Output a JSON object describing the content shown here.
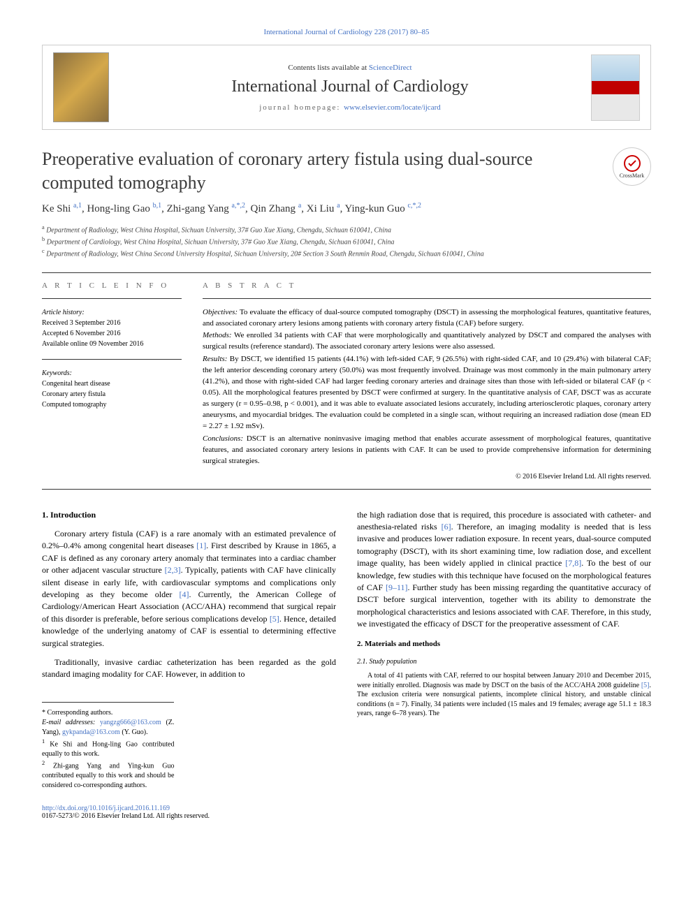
{
  "top_link": "International Journal of Cardiology 228 (2017) 80–85",
  "header": {
    "contents_prefix": "Contents lists available at ",
    "contents_link": "ScienceDirect",
    "journal": "International Journal of Cardiology",
    "homepage_prefix": "journal homepage: ",
    "homepage_link": "www.elsevier.com/locate/ijcard"
  },
  "article": {
    "title": "Preoperative evaluation of coronary artery fistula using dual-source computed tomography",
    "crossmark": "CrossMark"
  },
  "authors_html": "Ke Shi <sup>a,1</sup>, Hong-ling Gao <sup>b,1</sup>, Zhi-gang Yang <sup>a,*,2</sup>, Qin Zhang <sup>a</sup>, Xi Liu <sup>a</sup>, Ying-kun Guo <sup>c,*,2</sup>",
  "affiliations": [
    {
      "sup": "a",
      "text": "Department of Radiology, West China Hospital, Sichuan University, 37# Guo Xue Xiang, Chengdu, Sichuan 610041, China"
    },
    {
      "sup": "b",
      "text": "Department of Cardiology, West China Hospital, Sichuan University, 37# Guo Xue Xiang, Chengdu, Sichuan 610041, China"
    },
    {
      "sup": "c",
      "text": "Department of Radiology, West China Second University Hospital, Sichuan University, 20# Section 3 South Renmin Road, Chengdu, Sichuan 610041, China"
    }
  ],
  "info": {
    "heading": "a r t i c l e   i n f o",
    "history_label": "Article history:",
    "history": [
      "Received 3 September 2016",
      "Accepted 6 November 2016",
      "Available online 09 November 2016"
    ],
    "keywords_label": "Keywords:",
    "keywords": [
      "Congenital heart disease",
      "Coronary artery fistula",
      "Computed tomography"
    ]
  },
  "abstract": {
    "heading": "a b s t r a c t",
    "sections": [
      {
        "label": "Objectives:",
        "text": "To evaluate the efficacy of dual-source computed tomography (DSCT) in assessing the morphological features, quantitative features, and associated coronary artery lesions among patients with coronary artery fistula (CAF) before surgery."
      },
      {
        "label": "Methods:",
        "text": "We enrolled 34 patients with CAF that were morphologically and quantitatively analyzed by DSCT and compared the analyses with surgical results (reference standard). The associated coronary artery lesions were also assessed."
      },
      {
        "label": "Results:",
        "text": "By DSCT, we identified 15 patients (44.1%) with left-sided CAF, 9 (26.5%) with right-sided CAF, and 10 (29.4%) with bilateral CAF; the left anterior descending coronary artery (50.0%) was most frequently involved. Drainage was most commonly in the main pulmonary artery (41.2%), and those with right-sided CAF had larger feeding coronary arteries and drainage sites than those with left-sided or bilateral CAF (p < 0.05). All the morphological features presented by DSCT were confirmed at surgery. In the quantitative analysis of CAF, DSCT was as accurate as surgery (r = 0.95–0.98, p < 0.001), and it was able to evaluate associated lesions accurately, including arteriosclerotic plaques, coronary artery aneurysms, and myocardial bridges. The evaluation could be completed in a single scan, without requiring an increased radiation dose (mean ED = 2.27 ± 1.92 mSv)."
      },
      {
        "label": "Conclusions:",
        "text": "DSCT is an alternative noninvasive imaging method that enables accurate assessment of morphological features, quantitative features, and associated coronary artery lesions in patients with CAF. It can be used to provide comprehensive information for determining surgical strategies."
      }
    ],
    "copyright": "© 2016 Elsevier Ireland Ltd. All rights reserved."
  },
  "body": {
    "left": {
      "heading": "1. Introduction",
      "paragraphs": [
        "Coronary artery fistula (CAF) is a rare anomaly with an estimated prevalence of 0.2%–0.4% among congenital heart diseases <span class='cite'>[1]</span>. First described by Krause in 1865, a CAF is defined as any coronary artery anomaly that terminates into a cardiac chamber or other adjacent vascular structure <span class='cite'>[2,3]</span>. Typically, patients with CAF have clinically silent disease in early life, with cardiovascular symptoms and complications only developing as they become older <span class='cite'>[4]</span>. Currently, the American College of Cardiology/American Heart Association (ACC/AHA) recommend that surgical repair of this disorder is preferable, before serious complications develop <span class='cite'>[5]</span>. Hence, detailed knowledge of the underlying anatomy of CAF is essential to determining effective surgical strategies.",
        "Traditionally, invasive cardiac catheterization has been regarded as the gold standard imaging modality for CAF. However, in addition to"
      ]
    },
    "right": {
      "continuation": "the high radiation dose that is required, this procedure is associated with catheter- and anesthesia-related risks <span class='cite'>[6]</span>. Therefore, an imaging modality is needed that is less invasive and produces lower radiation exposure. In recent years, dual-source computed tomography (DSCT), with its short examining time, low radiation dose, and excellent image quality, has been widely applied in clinical practice <span class='cite'>[7,8]</span>. To the best of our knowledge, few studies with this technique have focused on the morphological features of CAF <span class='cite'>[9–11]</span>. Further study has been missing regarding the quantitative accuracy of DSCT before surgical intervention, together with its ability to demonstrate the morphological characteristics and lesions associated with CAF. Therefore, in this study, we investigated the efficacy of DSCT for the preoperative assessment of CAF.",
      "h2": "2. Materials and methods",
      "h3": "2.1. Study population",
      "p2": "A total of 41 patients with CAF, referred to our hospital between January 2010 and December 2015, were initially enrolled. Diagnosis was made by DSCT on the basis of the ACC/AHA 2008 guideline <span class='cite'>[5]</span>. The exclusion criteria were nonsurgical patients, incomplete clinical history, and unstable clinical conditions (n = 7). Finally, 34 patients were included (15 males and 19 females; average age 51.1 ± 18.3 years, range 6–78 years). The"
    }
  },
  "footnotes": {
    "corr": "* Corresponding authors.",
    "email_label": "E-mail addresses: ",
    "email1": "yangzg666@163.com",
    "email1_who": " (Z. Yang), ",
    "email2": "gykpanda@163.com",
    "email2_who": " (Y. Guo).",
    "n1": "Ke Shi and Hong-ling Gao contributed equally to this work.",
    "n2": "Zhi-gang Yang and Ying-kun Guo contributed equally to this work and should be considered co-corresponding authors."
  },
  "footer": {
    "doi": "http://dx.doi.org/10.1016/j.ijcard.2016.11.169",
    "issn": "0167-5273/© 2016 Elsevier Ireland Ltd. All rights reserved."
  },
  "colors": {
    "link": "#4472c4",
    "text": "#000000",
    "heading_gray": "#666666"
  }
}
